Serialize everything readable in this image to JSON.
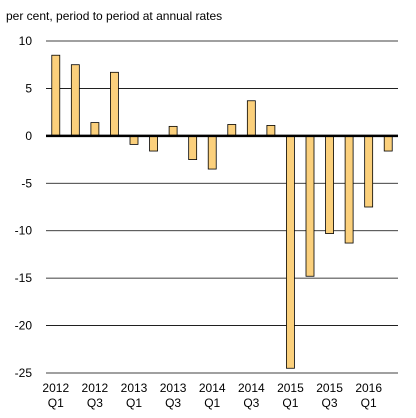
{
  "chart_data": {
    "type": "bar",
    "title": "per cent, period to period at annual rates",
    "categories": [
      [
        "2012",
        "Q1"
      ],
      null,
      [
        "2012",
        "Q3"
      ],
      null,
      [
        "2013",
        "Q1"
      ],
      null,
      [
        "2013",
        "Q3"
      ],
      null,
      [
        "2014",
        "Q1"
      ],
      null,
      [
        "2014",
        "Q3"
      ],
      null,
      [
        "2015",
        "Q1"
      ],
      null,
      [
        "2015",
        "Q3"
      ],
      null,
      [
        "2016",
        "Q1"
      ],
      null
    ],
    "values": [
      8.5,
      7.5,
      1.4,
      6.7,
      -0.9,
      -1.6,
      1.0,
      -2.5,
      -3.5,
      1.2,
      3.7,
      1.1,
      -24.5,
      -14.8,
      -10.3,
      -11.3,
      -7.5,
      -1.6
    ],
    "color": "#fbd07c",
    "ylim": [
      -25,
      10
    ],
    "yticks": [
      -25,
      -20,
      -15,
      -10,
      -5,
      0,
      5,
      10
    ],
    "grid": true
  }
}
